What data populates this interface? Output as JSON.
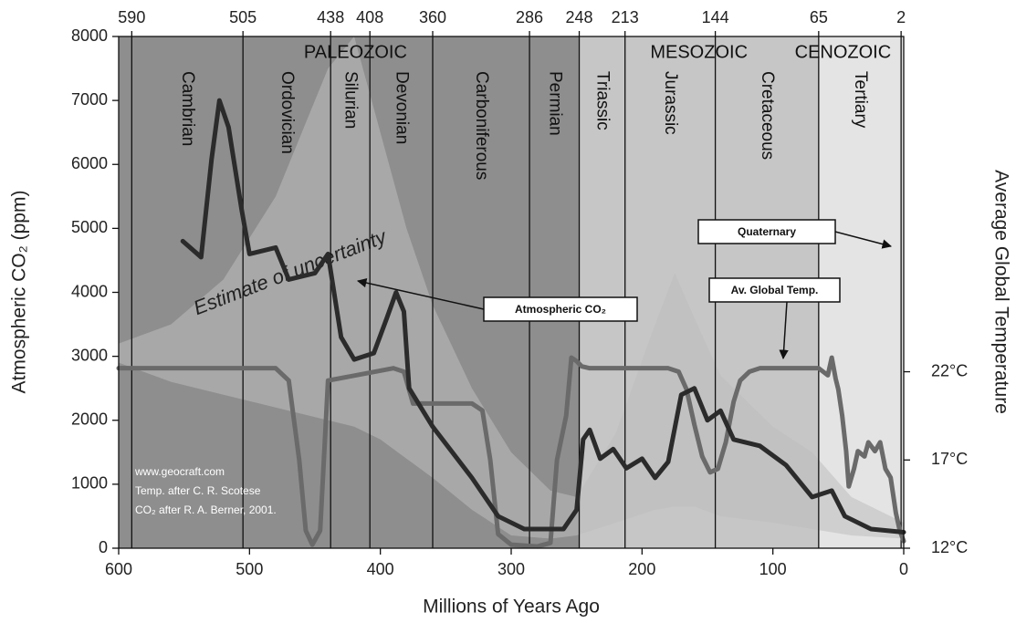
{
  "chart_data": {
    "type": "line",
    "xlabel": "Millions of Years Ago",
    "ylabel": "Atmospheric CO₂ (ppm)",
    "y2label": "Average Global Temperature",
    "xlim": [
      600,
      0
    ],
    "xticks": [
      600,
      500,
      400,
      300,
      200,
      100,
      0
    ],
    "ylim": [
      0,
      8000
    ],
    "yticks": [
      0,
      1000,
      2000,
      3000,
      4000,
      5000,
      6000,
      7000,
      8000
    ],
    "y2lim": [
      12,
      41
    ],
    "y2ticks": [
      {
        "value": 12,
        "label": "12°C"
      },
      {
        "value": 17,
        "label": "17°C"
      },
      {
        "value": 22,
        "label": "22°C"
      }
    ],
    "boundaries": [
      590,
      505,
      438,
      408,
      360,
      286,
      248,
      213,
      144,
      65,
      2
    ],
    "periods": [
      "Cambrian",
      "Ordovician",
      "Silurian",
      "Devonian",
      "Carboniferous",
      "Permian",
      "Triassic",
      "Jurassic",
      "Cretaceous",
      "Tertiary"
    ],
    "eras": [
      {
        "name": "PALEOZOIC",
        "range": [
          590,
          248
        ],
        "color": "#8e8e8e"
      },
      {
        "name": "MESOZOIC",
        "range": [
          248,
          65
        ],
        "color": "#c6c6c6"
      },
      {
        "name": "CENOZOIC",
        "range": [
          65,
          0
        ],
        "color": "#e4e4e4"
      }
    ],
    "series": [
      {
        "name": "Estimate of uncertainty",
        "type": "band",
        "color": "#bdbdbd",
        "x": [
          600,
          560,
          520,
          480,
          440,
          420,
          400,
          380,
          360,
          330,
          300,
          270,
          250,
          220,
          190,
          175,
          160,
          140,
          100,
          70,
          40,
          0
        ],
        "upper": [
          3200,
          3500,
          4200,
          5500,
          7500,
          8000,
          6500,
          5000,
          3800,
          2500,
          1500,
          900,
          800,
          1800,
          3500,
          4300,
          3600,
          2700,
          1900,
          1500,
          800,
          400
        ],
        "lower": [
          2900,
          2600,
          2400,
          2200,
          2000,
          1900,
          1700,
          1400,
          1100,
          600,
          200,
          150,
          200,
          400,
          600,
          650,
          650,
          500,
          400,
          300,
          200,
          150
        ]
      },
      {
        "name": "Av. Global Temp.",
        "color": "#6a6a6a",
        "axis": "y2",
        "x": [
          600,
          480,
          470,
          462,
          457,
          452,
          446,
          440,
          390,
          382,
          375,
          330,
          322,
          316,
          310,
          300,
          280,
          270,
          265,
          258,
          254,
          250,
          246,
          240,
          180,
          172,
          166,
          160,
          154,
          148,
          142,
          136,
          130,
          125,
          118,
          110,
          65,
          58,
          55,
          52,
          50,
          47,
          44,
          42,
          38,
          35,
          30,
          27,
          22,
          18,
          14,
          10,
          6,
          3,
          0
        ],
        "values": [
          22.2,
          22.2,
          21.5,
          17,
          13,
          12.2,
          13,
          21.5,
          22.2,
          22,
          20.2,
          20.2,
          19.8,
          17,
          12.8,
          12.2,
          12.1,
          12.3,
          17,
          19.5,
          22.8,
          22.6,
          22.3,
          22.2,
          22.2,
          22,
          21,
          19,
          17.2,
          16.3,
          16.5,
          18,
          20.3,
          21.5,
          22,
          22.2,
          22.2,
          21.8,
          22.8,
          21.6,
          21,
          19.5,
          17.5,
          15.5,
          16.5,
          17.5,
          17.2,
          18,
          17.5,
          18,
          16.5,
          16,
          14,
          13,
          12.4
        ]
      },
      {
        "name": "Atmospheric CO₂",
        "color": "#2b2b2b",
        "x": [
          551,
          537,
          529,
          523,
          516,
          506,
          500,
          480,
          470,
          450,
          440,
          430,
          420,
          405,
          395,
          388,
          382,
          378,
          360,
          330,
          310,
          290,
          260,
          250,
          245,
          240,
          232,
          222,
          212,
          200,
          190,
          180,
          170,
          160,
          150,
          140,
          130,
          110,
          90,
          70,
          55,
          45,
          25,
          0
        ],
        "values": [
          4800,
          4550,
          6080,
          7000,
          6580,
          5290,
          4600,
          4700,
          4200,
          4300,
          4600,
          3300,
          2950,
          3050,
          3600,
          4000,
          3700,
          2500,
          1900,
          1100,
          500,
          300,
          300,
          600,
          1700,
          1850,
          1400,
          1550,
          1250,
          1400,
          1100,
          1350,
          2400,
          2500,
          2000,
          2150,
          1700,
          1600,
          1300,
          800,
          900,
          500,
          300,
          250
        ]
      }
    ],
    "annotations": [
      {
        "text": "Quaternary"
      }
    ],
    "credits": [
      "www.geocraft.com",
      "Temp. after C. R. Scotese",
      "CO₂ after R. A. Berner, 2001."
    ]
  }
}
